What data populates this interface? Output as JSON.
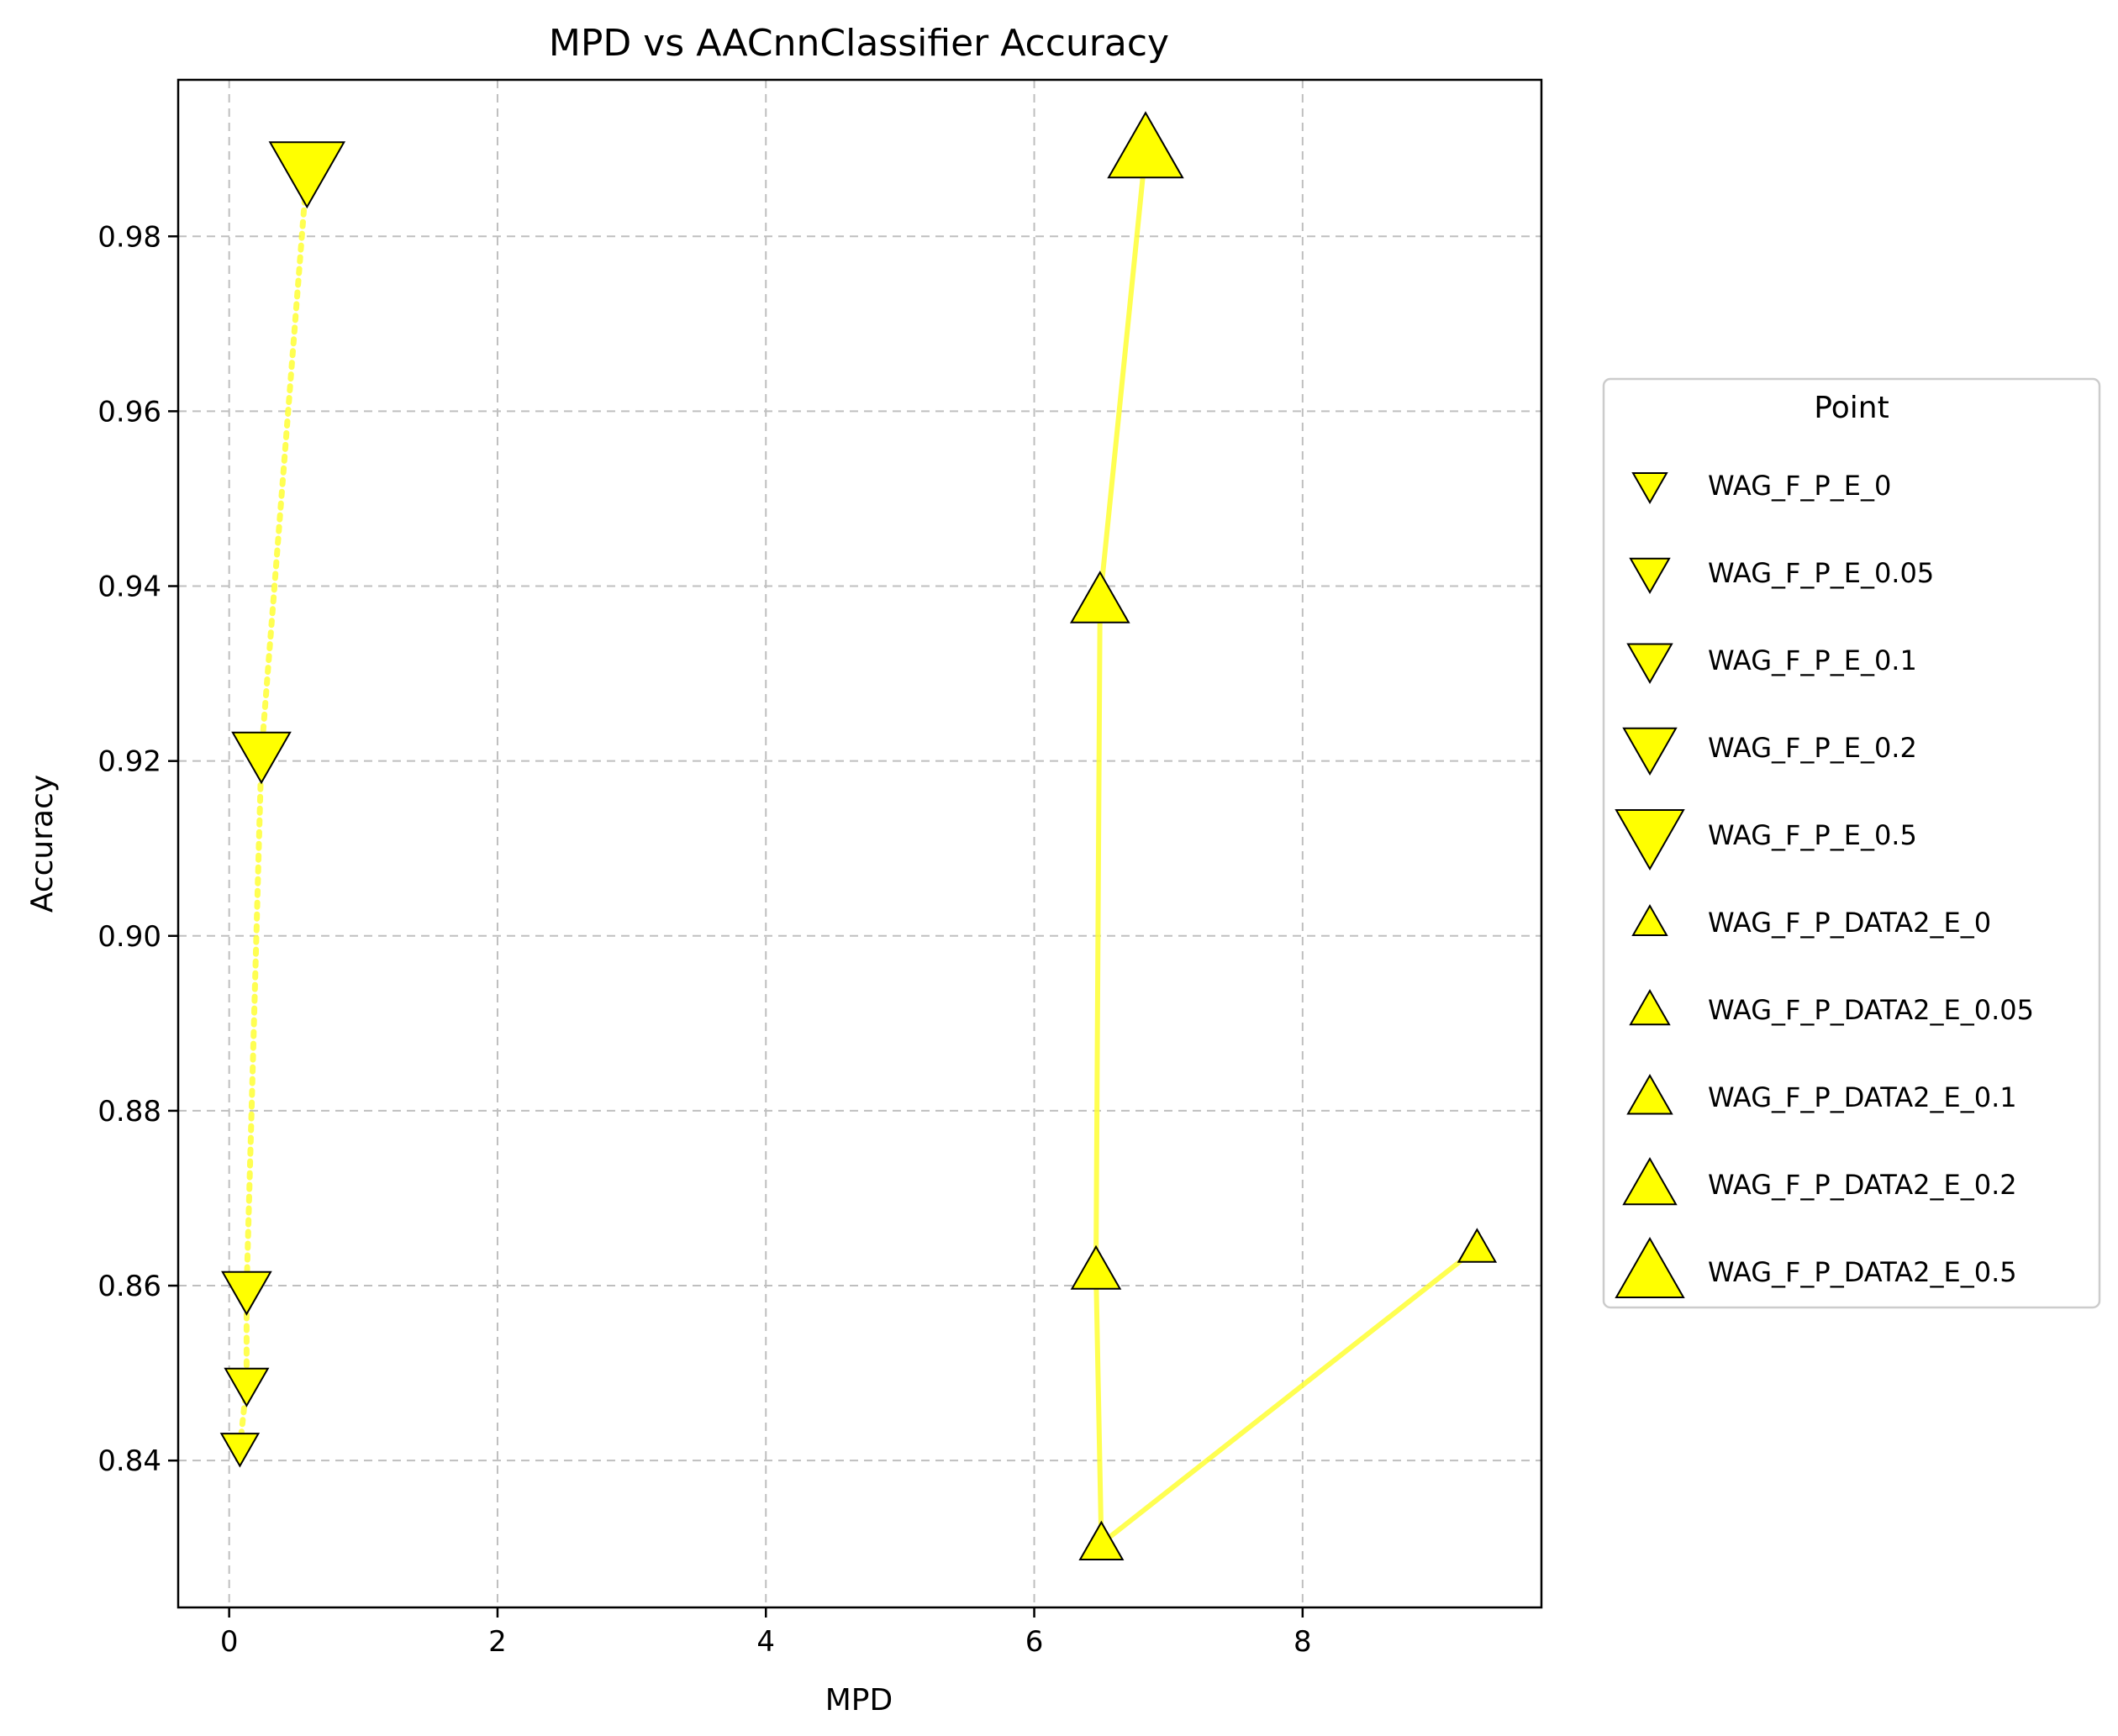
{
  "chart_data": {
    "type": "scatter",
    "title": "MPD vs AACnnClassifier Accuracy",
    "xlabel": "MPD",
    "ylabel": "Accuracy",
    "xlim": [
      -0.38,
      9.78
    ],
    "ylim": [
      0.8232,
      0.9979
    ],
    "xticks": [
      0,
      2,
      4,
      6,
      8
    ],
    "yticks": [
      0.84,
      0.86,
      0.88,
      0.9,
      0.92,
      0.94,
      0.96,
      0.98
    ],
    "xtick_labels": [
      "0",
      "2",
      "4",
      "6",
      "8"
    ],
    "ytick_labels": [
      "0.84",
      "0.86",
      "0.88",
      "0.90",
      "0.92",
      "0.94",
      "0.96",
      "0.98"
    ],
    "grid": true,
    "legend_title": "Point",
    "legend_position": "outside-right",
    "marker_color": "#ffff00",
    "line_color": "#ffff33",
    "series": [
      {
        "line_style": "dotted",
        "points": [
          {
            "name": "WAG_F_P_E_0",
            "x": 0.08,
            "y": 0.8415,
            "marker": "triangle-down",
            "size": 1
          },
          {
            "name": "WAG_F_P_E_0.05",
            "x": 0.13,
            "y": 0.8487,
            "marker": "triangle-down",
            "size": 1.15
          },
          {
            "name": "WAG_F_P_E_0.1",
            "x": 0.13,
            "y": 0.8595,
            "marker": "triangle-down",
            "size": 1.3
          },
          {
            "name": "WAG_F_P_E_0.2",
            "x": 0.24,
            "y": 0.9208,
            "marker": "triangle-down",
            "size": 1.55
          },
          {
            "name": "WAG_F_P_E_0.5",
            "x": 0.58,
            "y": 0.9876,
            "marker": "triangle-down",
            "size": 2.0
          }
        ]
      },
      {
        "line_style": "solid",
        "points": [
          {
            "name": "WAG_F_P_DATA2_E_0",
            "x": 9.3,
            "y": 0.8643,
            "marker": "triangle-up",
            "size": 1
          },
          {
            "name": "WAG_F_P_DATA2_E_0.05",
            "x": 6.5,
            "y": 0.8305,
            "marker": "triangle-up",
            "size": 1.15
          },
          {
            "name": "WAG_F_P_DATA2_E_0.1",
            "x": 6.46,
            "y": 0.8617,
            "marker": "triangle-up",
            "size": 1.3
          },
          {
            "name": "WAG_F_P_DATA2_E_0.2",
            "x": 6.49,
            "y": 0.9383,
            "marker": "triangle-up",
            "size": 1.55
          },
          {
            "name": "WAG_F_P_DATA2_E_0.5",
            "x": 6.83,
            "y": 0.9899,
            "marker": "triangle-up",
            "size": 2.0
          }
        ]
      }
    ]
  }
}
